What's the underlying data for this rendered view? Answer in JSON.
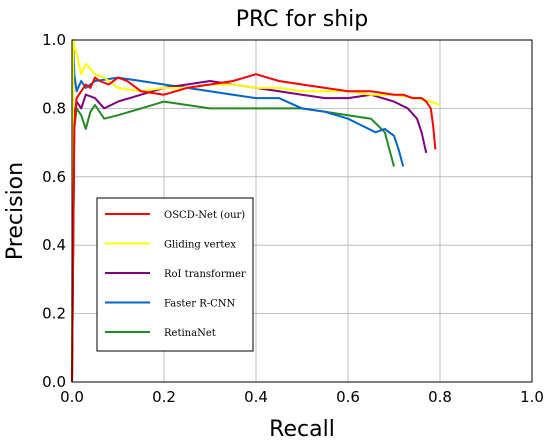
{
  "chart_data": {
    "type": "line",
    "title": "PRC for ship",
    "xlabel": "Recall",
    "ylabel": "Precision",
    "xlim": [
      0,
      1
    ],
    "ylim": [
      0,
      1
    ],
    "xticks": [
      "0.0",
      "0.2",
      "0.4",
      "0.6",
      "0.8",
      "1.0"
    ],
    "yticks": [
      "0.0",
      "0.2",
      "0.4",
      "0.6",
      "0.8",
      "1.0"
    ],
    "grid": true,
    "legend_position": "lower-left",
    "series": [
      {
        "name": "OSCD-Net (our)",
        "color": "#ff0000",
        "x": [
          0.0,
          0.005,
          0.01,
          0.02,
          0.03,
          0.04,
          0.05,
          0.06,
          0.08,
          0.1,
          0.12,
          0.15,
          0.2,
          0.25,
          0.3,
          0.35,
          0.4,
          0.45,
          0.5,
          0.55,
          0.6,
          0.65,
          0.7,
          0.72,
          0.74,
          0.76,
          0.77,
          0.78,
          0.785,
          0.79
        ],
        "y": [
          0.0,
          0.75,
          0.83,
          0.85,
          0.87,
          0.86,
          0.89,
          0.88,
          0.87,
          0.89,
          0.88,
          0.85,
          0.84,
          0.86,
          0.87,
          0.88,
          0.9,
          0.88,
          0.87,
          0.86,
          0.85,
          0.85,
          0.84,
          0.84,
          0.83,
          0.83,
          0.82,
          0.8,
          0.75,
          0.68
        ]
      },
      {
        "name": "Gliding vertex",
        "color": "#ffff00",
        "x": [
          0.0,
          0.003,
          0.005,
          0.01,
          0.02,
          0.03,
          0.05,
          0.07,
          0.1,
          0.15,
          0.2,
          0.25,
          0.3,
          0.35,
          0.4,
          0.45,
          0.5,
          0.55,
          0.6,
          0.65,
          0.7,
          0.75,
          0.78,
          0.8
        ],
        "y": [
          0.0,
          1.0,
          0.98,
          0.96,
          0.9,
          0.93,
          0.9,
          0.89,
          0.86,
          0.85,
          0.86,
          0.86,
          0.87,
          0.87,
          0.86,
          0.86,
          0.85,
          0.85,
          0.85,
          0.84,
          0.84,
          0.83,
          0.82,
          0.81
        ]
      },
      {
        "name": "RoI transformer",
        "color": "#800080",
        "x": [
          0.0,
          0.005,
          0.01,
          0.02,
          0.03,
          0.05,
          0.07,
          0.1,
          0.15,
          0.2,
          0.25,
          0.3,
          0.35,
          0.4,
          0.45,
          0.5,
          0.55,
          0.6,
          0.65,
          0.7,
          0.73,
          0.75,
          0.76,
          0.77
        ],
        "y": [
          0.0,
          0.78,
          0.82,
          0.8,
          0.84,
          0.83,
          0.8,
          0.82,
          0.84,
          0.86,
          0.87,
          0.88,
          0.87,
          0.86,
          0.85,
          0.84,
          0.83,
          0.83,
          0.84,
          0.82,
          0.8,
          0.77,
          0.73,
          0.67
        ]
      },
      {
        "name": "Faster R-CNN",
        "color": "#0066cc",
        "x": [
          0.0,
          0.003,
          0.005,
          0.01,
          0.02,
          0.03,
          0.05,
          0.1,
          0.15,
          0.2,
          0.25,
          0.3,
          0.35,
          0.4,
          0.45,
          0.5,
          0.55,
          0.6,
          0.63,
          0.66,
          0.68,
          0.7,
          0.71,
          0.72
        ],
        "y": [
          0.0,
          1.0,
          0.9,
          0.85,
          0.88,
          0.86,
          0.88,
          0.89,
          0.88,
          0.87,
          0.86,
          0.85,
          0.84,
          0.83,
          0.83,
          0.8,
          0.79,
          0.77,
          0.75,
          0.73,
          0.74,
          0.72,
          0.68,
          0.63
        ]
      },
      {
        "name": "RetinaNet",
        "color": "#228b22",
        "x": [
          0.0,
          0.005,
          0.01,
          0.02,
          0.03,
          0.04,
          0.05,
          0.07,
          0.1,
          0.15,
          0.2,
          0.25,
          0.3,
          0.35,
          0.4,
          0.45,
          0.5,
          0.55,
          0.6,
          0.65,
          0.68,
          0.69,
          0.7
        ],
        "y": [
          0.0,
          0.74,
          0.8,
          0.78,
          0.74,
          0.79,
          0.81,
          0.77,
          0.78,
          0.8,
          0.82,
          0.81,
          0.8,
          0.8,
          0.8,
          0.8,
          0.8,
          0.79,
          0.78,
          0.77,
          0.73,
          0.68,
          0.63
        ]
      }
    ]
  }
}
